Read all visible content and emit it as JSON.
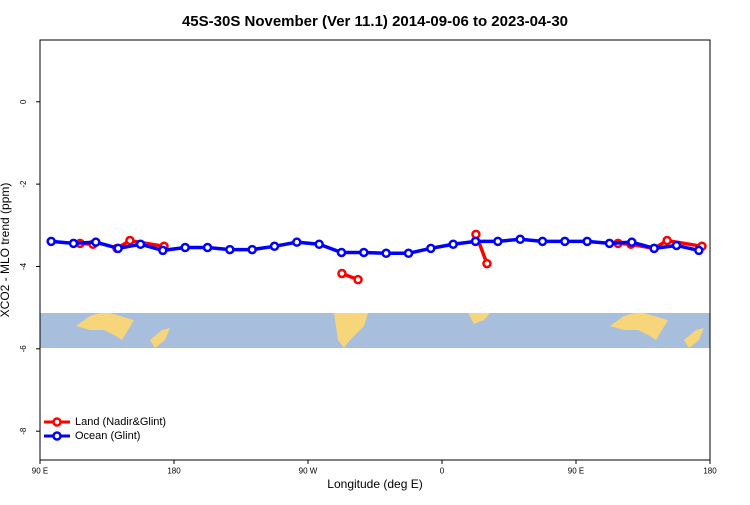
{
  "chart_data": {
    "type": "line",
    "title": "45S-30S November (Ver 11.1)   2014-09-06 to 2023-04-30",
    "x_label": "Longitude (deg E)",
    "y_label": "XCO2 - MLO trend (ppm)",
    "xlim": [
      90,
      540
    ],
    "xticks": [
      {
        "value": 90,
        "label": "90 E"
      },
      {
        "value": 180,
        "label": "180"
      },
      {
        "value": 270,
        "label": "90 W"
      },
      {
        "value": 360,
        "label": "0"
      },
      {
        "value": 450,
        "label": "90 E"
      },
      {
        "value": 540,
        "label": "180"
      }
    ],
    "ylim": [
      -8.7,
      1.5
    ],
    "yticks": [
      0,
      -2,
      -4,
      -6,
      -8
    ],
    "legend": "bottom-left",
    "series": [
      {
        "name": "Land (Nadir&Glint)",
        "color": "#ff0000",
        "x": [
          116.9,
          125.6,
          null,
          141.7,
          150.4,
          173.3,
          null,
          292.8,
          303.6,
          null,
          382.8,
          390.2,
          null,
          478.2,
          486.9,
          502.4,
          511.2,
          534.6
        ],
        "values": [
          -3.44,
          -3.46,
          null,
          -3.56,
          -3.37,
          -3.51,
          null,
          -4.17,
          -4.32,
          null,
          -3.22,
          -3.93,
          null,
          -3.44,
          -3.46,
          -3.56,
          -3.37,
          -3.51
        ]
      },
      {
        "name": "Ocean (Glint)",
        "color": "#0000ff",
        "x": [
          97.5,
          112.5,
          127.5,
          142.5,
          157.5,
          172.5,
          187.5,
          202.5,
          217.5,
          232.5,
          247.5,
          262.5,
          277.5,
          292.5,
          307.5,
          322.5,
          337.5,
          352.5,
          367.5,
          382.5,
          397.5,
          412.5,
          427.5,
          442.5,
          457.5,
          472.5,
          487.5,
          502.5,
          517.5,
          532.5
        ],
        "values": [
          -3.39,
          -3.44,
          -3.41,
          -3.56,
          -3.46,
          -3.61,
          -3.54,
          -3.54,
          -3.59,
          -3.59,
          -3.51,
          -3.41,
          -3.46,
          -3.66,
          -3.66,
          -3.68,
          -3.68,
          -3.56,
          -3.46,
          -3.39,
          -3.39,
          -3.34,
          -3.39,
          -3.39,
          -3.39,
          -3.44,
          -3.41,
          -3.56,
          -3.49,
          -3.61
        ]
      }
    ]
  }
}
